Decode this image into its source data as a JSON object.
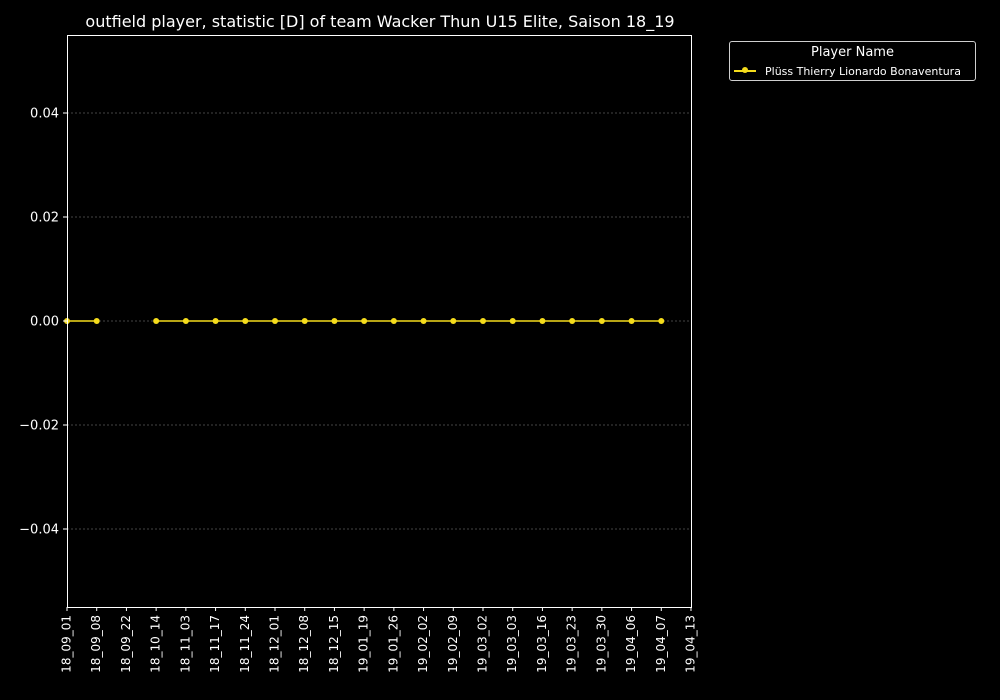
{
  "colors": {
    "background": "#000000",
    "foreground": "#ffffff",
    "grid": "#8a8a8a",
    "series": "#f5dc1c"
  },
  "legend": {
    "title": "Player Name",
    "entries": [
      "Plüss Thierry Lionardo Bonaventura"
    ]
  },
  "chart_data": {
    "type": "line",
    "title": "outfield player, statistic [D] of team Wacker Thun U15 Elite, Saison 18_19",
    "xlabel": "",
    "ylabel": "",
    "categories": [
      "18_09_01",
      "18_09_08",
      "18_09_22",
      "18_10_14",
      "18_11_03",
      "18_11_17",
      "18_11_24",
      "18_12_01",
      "18_12_08",
      "18_12_15",
      "19_01_19",
      "19_01_26",
      "19_02_02",
      "19_02_09",
      "19_03_02",
      "19_03_03",
      "19_03_16",
      "19_03_23",
      "19_03_30",
      "19_04_06",
      "19_04_07",
      "19_04_13"
    ],
    "series": [
      {
        "name": "Plüss Thierry Lionardo Bonaventura",
        "values": [
          0,
          0,
          null,
          0,
          0,
          0,
          0,
          0,
          0,
          0,
          0,
          0,
          0,
          0,
          0,
          0,
          0,
          0,
          0,
          0,
          0,
          null
        ]
      }
    ],
    "ylim": [
      -0.055,
      0.055
    ],
    "yticks": [
      -0.04,
      -0.02,
      0.0,
      0.02,
      0.04
    ],
    "ytick_labels": [
      "−0.04",
      "−0.02",
      "0.00",
      "0.02",
      "0.04"
    ],
    "grid": true,
    "legend_position": "outside-top-right"
  }
}
